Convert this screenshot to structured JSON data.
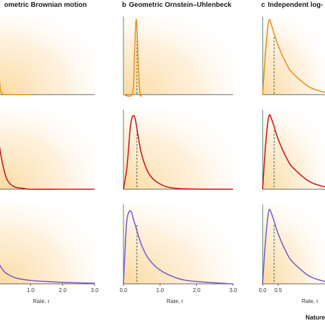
{
  "panels": [
    {
      "letter": "",
      "title": "ometric Brownian motion"
    },
    {
      "letter": "b",
      "title": "Geometric Ornstein–Uhlenbeck"
    },
    {
      "letter": "c",
      "title": "Independent log-"
    }
  ],
  "xlabel": "Rate, r",
  "credit": "Nature",
  "colors": {
    "row1": "#e8901c",
    "row2": "#c8151b",
    "row3": "#7b5cc4",
    "dashed": "#3a6b63",
    "axis": "#4f8a7e",
    "shade": "#fbe3b8"
  },
  "chart_data": [
    {
      "type": "line",
      "panel": "a",
      "row": 1,
      "x": [
        0.0,
        0.05,
        0.1,
        0.2,
        0.3,
        0.5,
        1.0
      ],
      "y": [
        0.35,
        0.08,
        0.02,
        0.0,
        0.0,
        0.0,
        0.0
      ],
      "xlim": [
        0,
        3
      ],
      "grid": false
    },
    {
      "type": "line",
      "panel": "a",
      "row": 2,
      "x": [
        0.0,
        0.05,
        0.1,
        0.2,
        0.3,
        0.5,
        0.8,
        1.0,
        2.0,
        3.0
      ],
      "y": [
        0.62,
        0.5,
        0.38,
        0.2,
        0.1,
        0.03,
        0.01,
        0.0,
        0.0,
        0.0
      ],
      "xlim": [
        0,
        3
      ],
      "grid": false
    },
    {
      "type": "line",
      "panel": "a",
      "row": 3,
      "x": [
        0.0,
        0.1,
        0.2,
        0.4,
        0.6,
        1.0,
        1.5,
        2.0,
        2.5,
        3.0
      ],
      "y": [
        0.27,
        0.2,
        0.15,
        0.1,
        0.07,
        0.045,
        0.03,
        0.02,
        0.013,
        0.009
      ],
      "xticks": [
        1.0,
        2.0,
        3.0
      ],
      "xlim": [
        0,
        3
      ],
      "grid": false
    },
    {
      "type": "line",
      "panel": "b",
      "row": 1,
      "x": [
        0.0,
        0.25,
        0.3,
        0.35,
        0.4,
        0.45,
        0.5
      ],
      "y": [
        0.0,
        0.02,
        0.5,
        1.0,
        0.5,
        0.02,
        0.0
      ],
      "mean": 0.37,
      "xlim": [
        0,
        3
      ],
      "grid": false
    },
    {
      "type": "line",
      "panel": "b",
      "row": 2,
      "x": [
        0.0,
        0.1,
        0.2,
        0.3,
        0.4,
        0.5,
        0.7,
        1.0,
        1.5,
        3.0
      ],
      "y": [
        0.0,
        0.3,
        0.85,
        0.95,
        0.7,
        0.45,
        0.2,
        0.07,
        0.01,
        0.0
      ],
      "mean": 0.37,
      "xlim": [
        0,
        3
      ],
      "grid": false
    },
    {
      "type": "line",
      "panel": "b",
      "row": 3,
      "x": [
        0.0,
        0.05,
        0.1,
        0.2,
        0.3,
        0.5,
        0.7,
        1.0,
        1.5,
        2.0,
        3.0
      ],
      "y": [
        0.0,
        0.5,
        0.85,
        0.95,
        0.8,
        0.5,
        0.32,
        0.18,
        0.07,
        0.03,
        0.0
      ],
      "mean": 0.37,
      "xticks": [
        0.0,
        1.0,
        2.0,
        3.0
      ],
      "xlim": [
        0,
        3
      ],
      "grid": false
    },
    {
      "type": "line",
      "panel": "c",
      "row": 1,
      "x": [
        0.0,
        0.1,
        0.2,
        0.3,
        0.5,
        0.8,
        1.0,
        1.5,
        2.0
      ],
      "y": [
        0.0,
        0.6,
        0.98,
        0.9,
        0.65,
        0.38,
        0.27,
        0.1,
        0.03
      ],
      "mean": 0.37,
      "xlim": [
        0,
        2
      ],
      "grid": false
    },
    {
      "type": "line",
      "panel": "c",
      "row": 2,
      "x": [
        0.0,
        0.1,
        0.2,
        0.3,
        0.5,
        0.8,
        1.0,
        1.5,
        2.0
      ],
      "y": [
        0.0,
        0.6,
        0.95,
        0.9,
        0.65,
        0.38,
        0.27,
        0.1,
        0.03
      ],
      "mean": 0.37,
      "xlim": [
        0,
        2
      ],
      "grid": false
    },
    {
      "type": "line",
      "panel": "c",
      "row": 3,
      "x": [
        0.0,
        0.1,
        0.2,
        0.3,
        0.5,
        0.8,
        1.0,
        1.5,
        2.0
      ],
      "y": [
        0.0,
        0.6,
        0.95,
        0.9,
        0.65,
        0.38,
        0.27,
        0.1,
        0.03
      ],
      "mean": 0.37,
      "xticks": [
        0.0,
        0.5
      ],
      "xlim": [
        0,
        2
      ],
      "grid": false
    }
  ]
}
